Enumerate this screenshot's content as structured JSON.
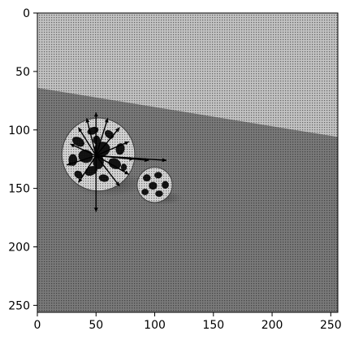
{
  "chart_data": {
    "type": "heatmap",
    "title": "",
    "xlabel": "",
    "ylabel": "",
    "image_size": [
      256,
      256
    ],
    "xlim": [
      0,
      256
    ],
    "ylim": [
      256,
      0
    ],
    "x_ticks": [
      0,
      50,
      100,
      150,
      200,
      250
    ],
    "y_ticks": [
      0,
      50,
      100,
      150,
      200,
      250
    ],
    "x_tick_labels": [
      "0",
      "50",
      "100",
      "150",
      "200",
      "250"
    ],
    "y_tick_labels": [
      "0",
      "50",
      "100",
      "150",
      "200",
      "250"
    ],
    "colormap": "gray",
    "scene": {
      "horizon_line": {
        "x": [
          0,
          256
        ],
        "y": [
          64,
          106
        ]
      },
      "large_ball": {
        "center": [
          52,
          121
        ],
        "radius": 31
      },
      "small_ball": {
        "center": [
          100,
          147
        ],
        "radius": 15
      },
      "vector_field_origin": [
        50,
        122
      ],
      "vectors": [
        [
          50,
          85
        ],
        [
          60,
          90
        ],
        [
          70,
          98
        ],
        [
          78,
          110
        ],
        [
          82,
          125
        ],
        [
          95,
          126
        ],
        [
          110,
          126
        ],
        [
          78,
          138
        ],
        [
          70,
          148
        ],
        [
          50,
          170
        ],
        [
          35,
          145
        ],
        [
          25,
          130
        ],
        [
          28,
          112
        ],
        [
          35,
          98
        ],
        [
          42,
          90
        ]
      ]
    },
    "colors": {
      "sky": "#c4c4c4",
      "floor": "#7a7a7a",
      "dither": "#2a2a2a",
      "vector": "#000000"
    }
  }
}
